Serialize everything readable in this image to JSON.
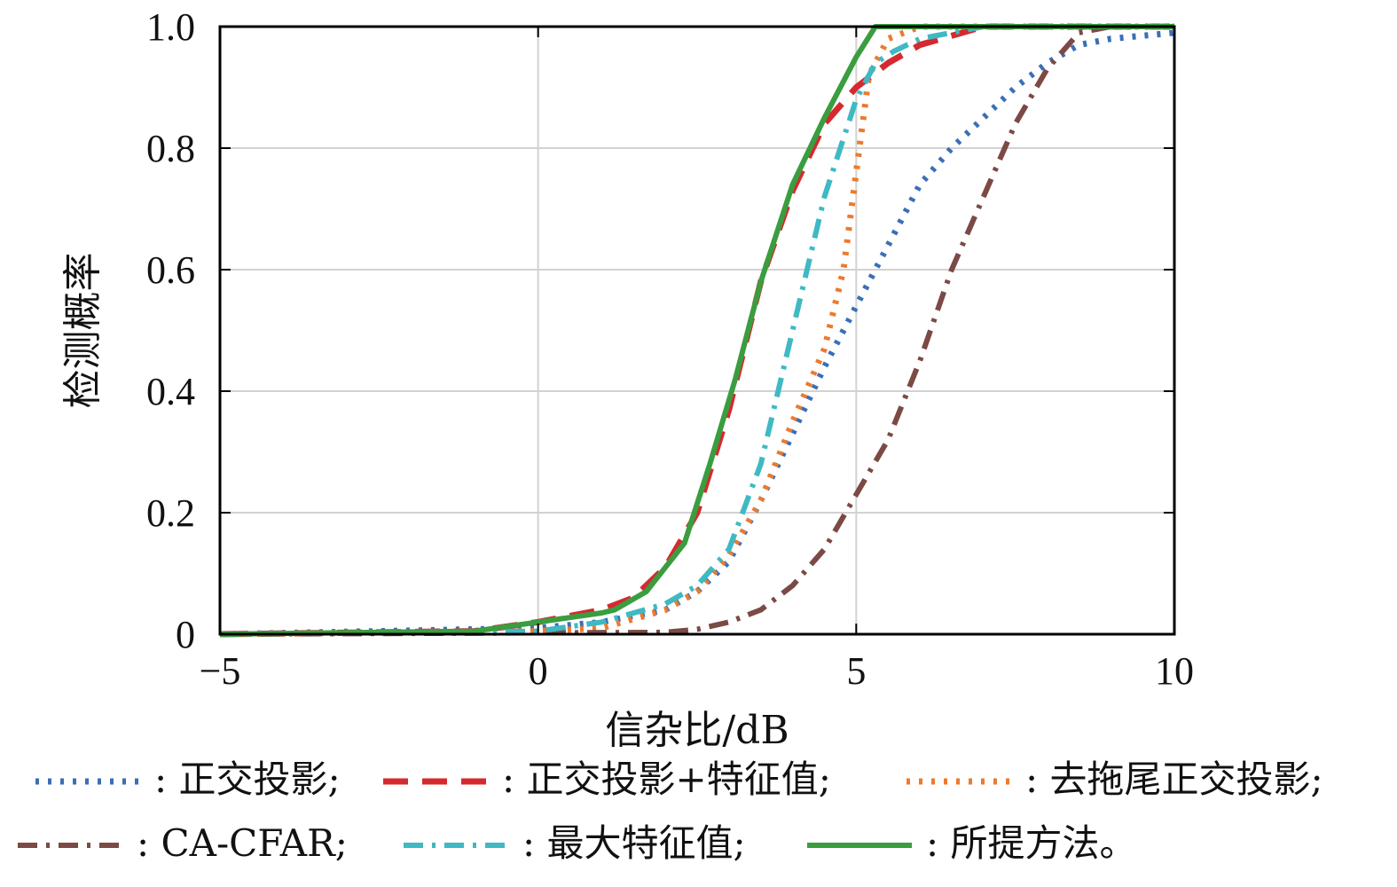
{
  "chart_data": {
    "type": "line",
    "title": "",
    "xlabel": "信杂比/dB",
    "ylabel": "检测概率",
    "xlim": [
      -5,
      10
    ],
    "ylim": [
      0,
      1
    ],
    "x_ticks": [
      -5,
      0,
      5,
      10
    ],
    "y_ticks": [
      0,
      0.2,
      0.4,
      0.6,
      0.8,
      1.0
    ],
    "x_tick_labels": [
      "−5",
      "0",
      "5",
      "10"
    ],
    "y_tick_labels": [
      "0",
      "0.2",
      "0.4",
      "0.6",
      "0.8",
      "1.0"
    ],
    "grid": true,
    "legend_position": "bottom",
    "series": [
      {
        "name": "正交投影",
        "color": "#3a6fb7",
        "dash": "dotted",
        "x": [
          -5,
          0,
          1,
          2,
          2.5,
          3,
          3.5,
          4,
          4.5,
          5,
          5.5,
          6,
          6.5,
          7,
          7.5,
          8,
          8.5,
          9,
          10
        ],
        "y": [
          0,
          0.01,
          0.02,
          0.04,
          0.07,
          0.12,
          0.22,
          0.33,
          0.44,
          0.54,
          0.64,
          0.74,
          0.8,
          0.85,
          0.9,
          0.94,
          0.97,
          0.98,
          0.99
        ]
      },
      {
        "name": "正交投影+特征值",
        "color": "#d42a2f",
        "dash": "dashed",
        "x": [
          -5,
          -1,
          0,
          1,
          1.5,
          2,
          2.5,
          3,
          3.5,
          4,
          4.5,
          5,
          5.5,
          6,
          7,
          8,
          10
        ],
        "y": [
          0,
          0.005,
          0.02,
          0.04,
          0.06,
          0.11,
          0.2,
          0.37,
          0.58,
          0.73,
          0.84,
          0.9,
          0.94,
          0.97,
          1.0,
          1.0,
          1.0
        ]
      },
      {
        "name": "去拖尾正交投影",
        "color": "#ec7a2f",
        "dash": "dotted",
        "x": [
          -5,
          0,
          1,
          2,
          2.5,
          3,
          3.5,
          4,
          4.5,
          4.8,
          5,
          5.2,
          5.5,
          6,
          7,
          10
        ],
        "y": [
          0,
          0.005,
          0.01,
          0.04,
          0.07,
          0.13,
          0.22,
          0.35,
          0.47,
          0.6,
          0.76,
          0.92,
          0.98,
          1.0,
          1.0,
          1.0
        ]
      },
      {
        "name": "CA-CFAR",
        "color": "#7b4a45",
        "dash": "dashdot",
        "x": [
          -5,
          2,
          2.5,
          3,
          3.5,
          4,
          4.5,
          5,
          5.5,
          6,
          6.5,
          7,
          7.5,
          8,
          8.5,
          9,
          10
        ],
        "y": [
          0,
          0.003,
          0.008,
          0.02,
          0.04,
          0.08,
          0.14,
          0.23,
          0.32,
          0.45,
          0.6,
          0.72,
          0.84,
          0.93,
          0.99,
          1.0,
          1.0
        ]
      },
      {
        "name": "最大特征值",
        "color": "#3fb9c3",
        "dash": "dashdot",
        "x": [
          -5,
          0,
          1,
          2,
          2.5,
          3,
          3.5,
          4,
          4.5,
          5,
          5.3,
          5.6,
          6,
          7,
          10
        ],
        "y": [
          0,
          0.005,
          0.02,
          0.05,
          0.08,
          0.14,
          0.28,
          0.5,
          0.72,
          0.88,
          0.94,
          0.96,
          0.98,
          1.0,
          1.0
        ]
      },
      {
        "name": "所提方法。",
        "color": "#3a9d3f",
        "dash": "solid",
        "x": [
          -5,
          -1,
          0,
          1,
          1.2,
          1.7,
          2.3,
          2.7,
          3.1,
          3.5,
          4,
          4.5,
          5,
          5.3,
          6,
          10
        ],
        "y": [
          0,
          0.005,
          0.02,
          0.035,
          0.04,
          0.07,
          0.15,
          0.28,
          0.42,
          0.58,
          0.74,
          0.85,
          0.95,
          1.0,
          1.0,
          1.0
        ]
      }
    ],
    "legend_rows": [
      {
        "row": 1,
        "items": [
          {
            "name": "正交投影",
            "text": ": 正交投影;"
          },
          {
            "name": "正交投影+特征值",
            "text": ": 正交投影+特征值;"
          },
          {
            "name": "去拖尾正交投影",
            "text": ": 去拖尾正交投影;"
          }
        ]
      },
      {
        "row": 2,
        "items": [
          {
            "name": "CA-CFAR",
            "text": ": CA-CFAR;"
          },
          {
            "name": "最大特征值",
            "text": ": 最大特征值;"
          },
          {
            "name": "所提方法。",
            "text": ": 所提方法。"
          }
        ]
      }
    ]
  }
}
